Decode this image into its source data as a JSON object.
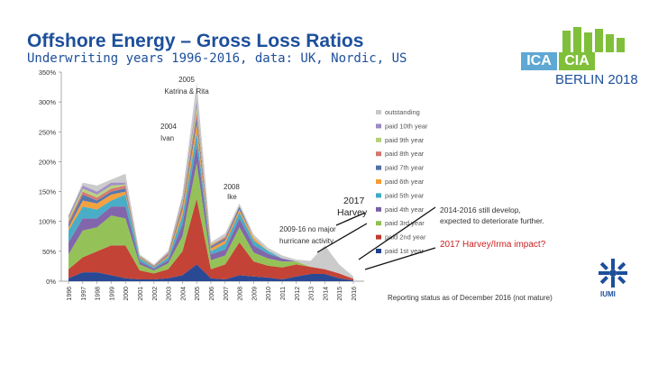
{
  "header": {
    "title": "Offshore Energy – Gross Loss Ratios",
    "subtitle": "Underwriting years 1996-2016, data: UK, Nordic, US"
  },
  "logo": {
    "left": "ICA",
    "right": "CIA",
    "city": "BERLIN 2018",
    "iumi": "IUMI",
    "accent_blue": "#5fa8d3",
    "accent_green": "#7fbf3a"
  },
  "chart_data": {
    "type": "area",
    "stacked": true,
    "x": [
      "1996",
      "1997",
      "1998",
      "1999",
      "2000",
      "2001",
      "2002",
      "2003",
      "2004",
      "2005",
      "2006",
      "2007",
      "2008",
      "2009",
      "2010",
      "2011",
      "2012",
      "2013",
      "2014",
      "2015",
      "2016"
    ],
    "y_ticks": [
      "0%",
      "50%",
      "100%",
      "150%",
      "200%",
      "250%",
      "300%",
      "350%"
    ],
    "ylim": [
      0,
      350
    ],
    "series": [
      {
        "name": "paid 1st year",
        "color": "#1f3f8f",
        "values": [
          5,
          15,
          15,
          10,
          5,
          3,
          3,
          5,
          10,
          28,
          5,
          3,
          10,
          8,
          6,
          3,
          8,
          12,
          12,
          5,
          1
        ]
      },
      {
        "name": "paid 2nd year",
        "color": "#c0392b",
        "values": [
          15,
          25,
          35,
          50,
          55,
          15,
          10,
          15,
          40,
          110,
          15,
          25,
          55,
          25,
          20,
          20,
          20,
          12,
          8,
          8,
          3
        ]
      },
      {
        "name": "paid 3rd year",
        "color": "#8fbf4f",
        "values": [
          25,
          45,
          40,
          50,
          45,
          10,
          5,
          10,
          25,
          60,
          15,
          15,
          25,
          15,
          12,
          10,
          5,
          0,
          0,
          0,
          0
        ]
      },
      {
        "name": "paid 4th year",
        "color": "#7b5ea7",
        "values": [
          20,
          20,
          15,
          15,
          20,
          5,
          3,
          5,
          20,
          30,
          10,
          10,
          15,
          12,
          8,
          5,
          0,
          0,
          0,
          0,
          0
        ]
      },
      {
        "name": "paid 5th year",
        "color": "#3fa9c4",
        "values": [
          20,
          20,
          15,
          10,
          20,
          5,
          2,
          5,
          15,
          20,
          5,
          10,
          10,
          8,
          5,
          0,
          0,
          0,
          0,
          0,
          0
        ]
      },
      {
        "name": "paid 6th year",
        "color": "#f39c34",
        "values": [
          5,
          10,
          10,
          10,
          5,
          2,
          1,
          3,
          10,
          15,
          5,
          5,
          5,
          5,
          0,
          0,
          0,
          0,
          0,
          0,
          0
        ]
      },
      {
        "name": "paid 7th year",
        "color": "#4f6fa8",
        "values": [
          5,
          10,
          5,
          5,
          5,
          1,
          1,
          2,
          5,
          10,
          3,
          3,
          5,
          0,
          0,
          0,
          0,
          0,
          0,
          0,
          0
        ]
      },
      {
        "name": "paid 8th year",
        "color": "#d1756a",
        "values": [
          5,
          5,
          5,
          5,
          5,
          1,
          1,
          2,
          5,
          10,
          2,
          3,
          0,
          0,
          0,
          0,
          0,
          0,
          0,
          0,
          0
        ]
      },
      {
        "name": "paid 9th year",
        "color": "#b5cf7a",
        "values": [
          5,
          5,
          5,
          5,
          2,
          1,
          0,
          1,
          5,
          10,
          2,
          0,
          0,
          0,
          0,
          0,
          0,
          0,
          0,
          0,
          0
        ]
      },
      {
        "name": "paid 10th year",
        "color": "#9b89c4",
        "values": [
          5,
          5,
          5,
          5,
          3,
          0,
          0,
          1,
          5,
          10,
          0,
          0,
          0,
          0,
          0,
          0,
          0,
          0,
          0,
          0,
          0
        ]
      },
      {
        "name": "outstanding",
        "color": "#c8c8c8",
        "values": [
          0,
          5,
          10,
          5,
          15,
          2,
          2,
          2,
          5,
          30,
          3,
          6,
          5,
          5,
          5,
          5,
          3,
          10,
          40,
          15,
          4
        ]
      }
    ],
    "legend_position": "right",
    "annotations": [
      {
        "text": "2005 Katrina & Rita",
        "at": "2005"
      },
      {
        "text": "2004 Ivan",
        "at": "2004"
      },
      {
        "text": "2008 Ike",
        "at": "2008"
      },
      {
        "text": "2017 Harvey",
        "at": "2017"
      },
      {
        "text": "2009-16 no major hurricane activity",
        "at": "2009-2016"
      },
      {
        "text": "2014-2016 still develop, expected to deteriorate further.",
        "at": "2014-2016"
      },
      {
        "text": "2017 Harvey/Irma impact?",
        "at": "2017"
      }
    ],
    "footnote": "Reporting status as of December 2016 (not mature)"
  }
}
